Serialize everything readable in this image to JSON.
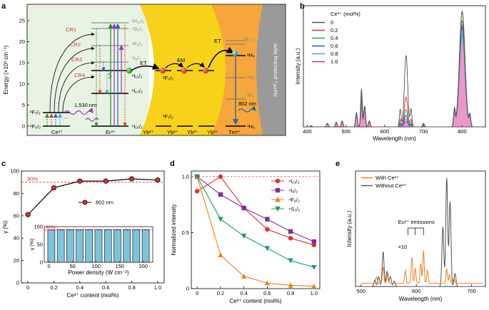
{
  "panels": {
    "a": "a",
    "b": "b",
    "c": "c",
    "d": "d",
    "e": "e"
  },
  "panel_a": {
    "ylabel": "Energy (×10³ cm⁻¹)",
    "yticks": [
      0,
      5,
      10,
      15,
      20,
      25
    ],
    "ions": [
      "Ce³⁺",
      "Er³⁺",
      "Yb³⁺",
      "Yb³⁺",
      "Yb³⁺",
      "Yb³⁺",
      "Tm³⁺"
    ],
    "ce_levels": [
      "²F₇/₂",
      "²F₅/₂"
    ],
    "er_levels": [
      "²H₁₁/₂",
      "⁴S₃/₂",
      "⁴F₉/₂",
      "⁴I₉/₂",
      "⁴I₁₁/₂",
      "⁴I₁₃/₂",
      "⁴I₁₅/₂"
    ],
    "yb_levels": [
      "²F₅/₂",
      "²F₇/₂"
    ],
    "tm_levels": [
      "³F₂,₃",
      "³H₄",
      "³H₅",
      "³F₄",
      "³H₆"
    ],
    "cr": [
      "CR1",
      "CR2",
      "CR3",
      "CR4"
    ],
    "labels": {
      "et1": "ET",
      "em": "EM",
      "et2": "ET",
      "nm1530": "1,530 nm",
      "nm802": "802 nm",
      "shell": "NaYF₄ protecting layer"
    },
    "colors": {
      "core": "#e8f3e3",
      "yb": "#f7d21a",
      "tm": "#f6a63a",
      "shell": "#9a9a9a"
    }
  },
  "chart_data": [
    {
      "panel": "b",
      "type": "line",
      "xlabel": "Wavelength (nm)",
      "ylabel": "Intensity (a.u.)",
      "xlim": [
        390,
        860
      ],
      "xticks": [
        400,
        500,
        600,
        700,
        800
      ],
      "legend_title": "Ce³⁺ (mol%)",
      "legend_position": "top-left",
      "series": [
        {
          "name": "0",
          "color": "#555555",
          "peaks": [
            [
              540,
              0.33
            ],
            [
              655,
              0.62
            ],
            [
              800,
              1.0
            ]
          ]
        },
        {
          "name": "0.2",
          "color": "#e03030",
          "peaks": [
            [
              540,
              0.3
            ],
            [
              655,
              0.26
            ],
            [
              800,
              1.0
            ]
          ]
        },
        {
          "name": "0.4",
          "color": "#2aa05a",
          "peaks": [
            [
              540,
              0.26
            ],
            [
              655,
              0.15
            ],
            [
              800,
              0.92
            ]
          ]
        },
        {
          "name": "0.6",
          "color": "#2a5bc4",
          "peaks": [
            [
              540,
              0.23
            ],
            [
              655,
              0.1
            ],
            [
              800,
              0.86
            ]
          ]
        },
        {
          "name": "0.8",
          "color": "#38a8e0",
          "peaks": [
            [
              540,
              0.2
            ],
            [
              655,
              0.07
            ],
            [
              800,
              0.8
            ]
          ]
        },
        {
          "name": "1.0",
          "color": "#9a3fb0",
          "peaks": [
            [
              540,
              0.18
            ],
            [
              655,
              0.05
            ],
            [
              800,
              0.88
            ]
          ]
        }
      ]
    },
    {
      "panel": "c",
      "type": "line",
      "xlabel": "Ce³⁺ content (mol%)",
      "ylabel": "γ (%)",
      "xlim": [
        -0.05,
        1.05
      ],
      "ylim": [
        0,
        100
      ],
      "xticks": [
        0,
        0.2,
        0.4,
        0.6,
        0.8,
        1.0
      ],
      "yticks": [
        0,
        20,
        40,
        60,
        80,
        100
      ],
      "ref_line": {
        "y": 90,
        "label": "90%"
      },
      "series": [
        {
          "name": "802 nm",
          "x": [
            0,
            0.2,
            0.4,
            0.6,
            0.8,
            1.0
          ],
          "y": [
            61,
            85,
            91,
            91,
            93,
            92
          ]
        }
      ],
      "inset": {
        "type": "bar",
        "xlabel": "Power density (W cm⁻²)",
        "ylabel": "γ (%)",
        "xlim": [
          -10,
          220
        ],
        "ylim": [
          0,
          100
        ],
        "xticks": [
          0,
          50,
          100,
          150,
          200
        ],
        "yticks": [
          0,
          50,
          100
        ],
        "ref_line": {
          "y": 90,
          "label": "90%"
        },
        "x": [
          5,
          25,
          45,
          65,
          85,
          105,
          125,
          145,
          165,
          185,
          205
        ],
        "values": [
          91,
          92,
          92,
          92,
          92,
          92,
          92,
          92,
          92,
          92,
          92
        ]
      }
    },
    {
      "panel": "d",
      "type": "line",
      "xlabel": "Ce³⁺ content (mol%)",
      "ylabel": "Normalized intensity",
      "xlim": [
        -0.05,
        1.05
      ],
      "ylim": [
        0,
        1.05
      ],
      "xticks": [
        0,
        0.2,
        0.4,
        0.6,
        0.8,
        1.0
      ],
      "yticks": [
        0,
        0.5,
        1.0
      ],
      "x": [
        0,
        0.2,
        0.4,
        0.6,
        0.8,
        1.0
      ],
      "legend_position": "top-right",
      "series": [
        {
          "name": "⁴I₁₁/₂",
          "color": "#e03030",
          "marker": "circle",
          "y": [
            0.87,
            1.0,
            0.72,
            0.53,
            0.45,
            0.39
          ]
        },
        {
          "name": "⁴I₉/₂",
          "color": "#8a2aa0",
          "marker": "square",
          "y": [
            1.0,
            0.84,
            0.72,
            0.62,
            0.51,
            0.42
          ]
        },
        {
          "name": "⁴F₉/₂",
          "color": "#f08010",
          "marker": "triangle-up",
          "y": [
            1.0,
            0.3,
            0.11,
            0.05,
            0.03,
            0.02
          ]
        },
        {
          "name": "⁴S₃/₂",
          "color": "#18a060",
          "marker": "triangle-down",
          "y": [
            1.0,
            0.62,
            0.47,
            0.36,
            0.25,
            0.19
          ]
        }
      ]
    },
    {
      "panel": "e",
      "type": "line",
      "xlabel": "Wavelength (nm)",
      "ylabel": "Intensity (a.u.)",
      "xlim": [
        490,
        725
      ],
      "xticks": [
        500,
        600,
        700
      ],
      "legend_position": "top-left",
      "annotations": [
        "Eu³⁺ emissions",
        "×10"
      ],
      "series": [
        {
          "name": "With Ce³⁺",
          "color": "#f07f20",
          "peaks": [
            [
              540,
              0.15
            ],
            [
              592,
              0.24
            ],
            [
              613,
              0.3
            ],
            [
              655,
              0.13
            ]
          ]
        },
        {
          "name": "Without Ce³⁺",
          "color": "#555555",
          "peaks": [
            [
              540,
              0.32
            ],
            [
              655,
              1.0
            ]
          ]
        }
      ]
    }
  ]
}
